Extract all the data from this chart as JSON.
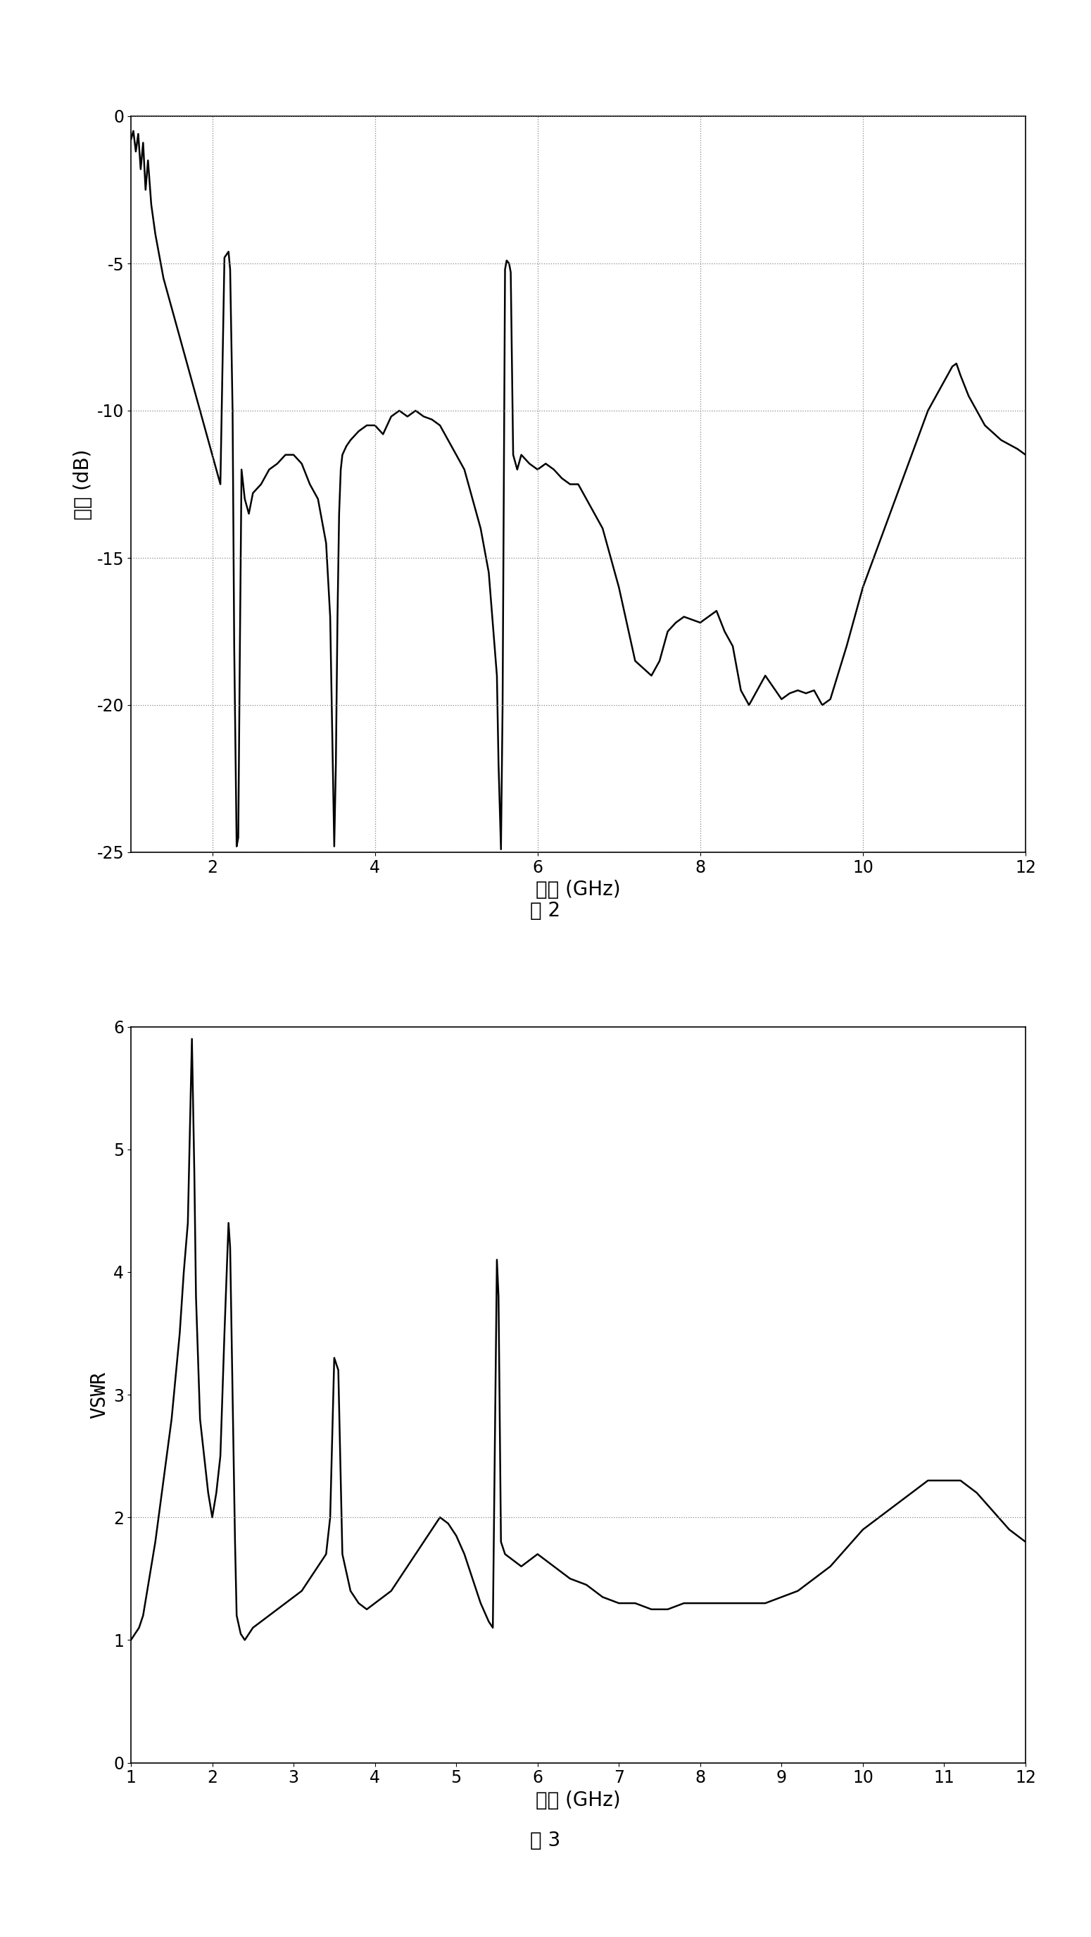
{
  "fig2_title": "图 2",
  "fig3_title": "图 3",
  "fig2_xlabel": "频率 (GHz)",
  "fig2_ylabel": "幅度 (dB)",
  "fig3_xlabel": "频率 (GHz)",
  "fig3_ylabel": "VSWR",
  "fig2_xlim": [
    1,
    12
  ],
  "fig2_ylim": [
    -25,
    0
  ],
  "fig2_xticks": [
    2,
    4,
    6,
    8,
    10,
    12
  ],
  "fig2_yticks": [
    0,
    -5,
    -10,
    -15,
    -20,
    -25
  ],
  "fig3_xlim": [
    1,
    12
  ],
  "fig3_ylim": [
    0,
    6
  ],
  "fig3_xticks": [
    1,
    2,
    3,
    4,
    5,
    6,
    7,
    8,
    9,
    10,
    11,
    12
  ],
  "fig3_yticks": [
    0,
    1,
    2,
    3,
    4,
    5,
    6
  ],
  "line_color": "#000000",
  "bg_color": "#ffffff",
  "grid_color": "#888888",
  "s11_x": [
    1.0,
    1.03,
    1.06,
    1.09,
    1.12,
    1.15,
    1.18,
    1.21,
    1.25,
    1.3,
    1.4,
    1.5,
    1.6,
    1.7,
    1.8,
    1.9,
    2.0,
    2.1,
    2.15,
    2.2,
    2.22,
    2.25,
    2.27,
    2.3,
    2.32,
    2.34,
    2.36,
    2.38,
    2.4,
    2.45,
    2.5,
    2.6,
    2.7,
    2.8,
    2.9,
    3.0,
    3.1,
    3.2,
    3.3,
    3.4,
    3.45,
    3.5,
    3.52,
    3.54,
    3.56,
    3.58,
    3.6,
    3.65,
    3.7,
    3.8,
    3.9,
    4.0,
    4.1,
    4.2,
    4.3,
    4.4,
    4.5,
    4.6,
    4.7,
    4.8,
    4.9,
    5.0,
    5.1,
    5.2,
    5.3,
    5.4,
    5.5,
    5.52,
    5.55,
    5.57,
    5.6,
    5.62,
    5.65,
    5.67,
    5.7,
    5.75,
    5.8,
    5.9,
    6.0,
    6.1,
    6.2,
    6.3,
    6.4,
    6.5,
    6.6,
    6.7,
    6.8,
    7.0,
    7.2,
    7.4,
    7.5,
    7.6,
    7.7,
    7.8,
    8.0,
    8.2,
    8.3,
    8.4,
    8.5,
    8.6,
    8.7,
    8.8,
    9.0,
    9.1,
    9.2,
    9.3,
    9.4,
    9.5,
    9.6,
    9.8,
    10.0,
    10.2,
    10.4,
    10.6,
    10.8,
    11.0,
    11.1,
    11.15,
    11.2,
    11.3,
    11.5,
    11.7,
    11.9,
    12.0
  ],
  "s11_y": [
    -0.8,
    -0.5,
    -1.2,
    -0.6,
    -1.8,
    -0.9,
    -2.5,
    -1.5,
    -3.0,
    -4.0,
    -5.5,
    -6.5,
    -7.5,
    -8.5,
    -9.5,
    -10.5,
    -11.5,
    -12.5,
    -4.8,
    -4.6,
    -5.2,
    -10.0,
    -18.0,
    -24.8,
    -24.5,
    -18.0,
    -12.0,
    -12.5,
    -13.0,
    -13.5,
    -12.8,
    -12.5,
    -12.0,
    -11.8,
    -11.5,
    -11.5,
    -11.8,
    -12.5,
    -13.0,
    -14.5,
    -17.0,
    -24.8,
    -22.0,
    -17.0,
    -13.5,
    -12.0,
    -11.5,
    -11.2,
    -11.0,
    -10.7,
    -10.5,
    -10.5,
    -10.8,
    -10.2,
    -10.0,
    -10.2,
    -10.0,
    -10.2,
    -10.3,
    -10.5,
    -11.0,
    -11.5,
    -12.0,
    -13.0,
    -14.0,
    -15.5,
    -19.0,
    -22.0,
    -24.9,
    -20.0,
    -5.2,
    -4.9,
    -5.0,
    -5.3,
    -11.5,
    -12.0,
    -11.5,
    -11.8,
    -12.0,
    -11.8,
    -12.0,
    -12.3,
    -12.5,
    -12.5,
    -13.0,
    -13.5,
    -14.0,
    -16.0,
    -18.5,
    -19.0,
    -18.5,
    -17.5,
    -17.2,
    -17.0,
    -17.2,
    -16.8,
    -17.5,
    -18.0,
    -19.5,
    -20.0,
    -19.5,
    -19.0,
    -19.8,
    -19.6,
    -19.5,
    -19.6,
    -19.5,
    -20.0,
    -19.8,
    -18.0,
    -16.0,
    -14.5,
    -13.0,
    -11.5,
    -10.0,
    -9.0,
    -8.5,
    -8.4,
    -8.8,
    -9.5,
    -10.5,
    -11.0,
    -11.3,
    -11.5
  ],
  "vswr_x": [
    1.0,
    1.05,
    1.1,
    1.15,
    1.2,
    1.3,
    1.4,
    1.5,
    1.6,
    1.65,
    1.7,
    1.72,
    1.75,
    1.78,
    1.8,
    1.85,
    1.9,
    1.95,
    2.0,
    2.05,
    2.1,
    2.15,
    2.2,
    2.22,
    2.25,
    2.28,
    2.3,
    2.35,
    2.4,
    2.45,
    2.5,
    2.6,
    2.7,
    2.8,
    2.9,
    3.0,
    3.1,
    3.2,
    3.3,
    3.4,
    3.45,
    3.5,
    3.55,
    3.6,
    3.7,
    3.8,
    3.9,
    4.0,
    4.1,
    4.2,
    4.3,
    4.4,
    4.5,
    4.6,
    4.7,
    4.8,
    4.9,
    5.0,
    5.1,
    5.2,
    5.3,
    5.4,
    5.45,
    5.5,
    5.52,
    5.55,
    5.6,
    5.7,
    5.8,
    5.9,
    6.0,
    6.2,
    6.4,
    6.6,
    6.8,
    7.0,
    7.2,
    7.4,
    7.6,
    7.8,
    8.0,
    8.2,
    8.4,
    8.6,
    8.8,
    9.0,
    9.2,
    9.4,
    9.6,
    9.8,
    10.0,
    10.2,
    10.4,
    10.6,
    10.8,
    11.0,
    11.1,
    11.2,
    11.4,
    11.6,
    11.8,
    12.0
  ],
  "vswr_y": [
    1.0,
    1.05,
    1.1,
    1.2,
    1.4,
    1.8,
    2.3,
    2.8,
    3.5,
    4.0,
    4.4,
    5.0,
    5.9,
    4.8,
    3.8,
    2.8,
    2.5,
    2.2,
    2.0,
    2.2,
    2.5,
    3.5,
    4.4,
    4.2,
    3.0,
    1.8,
    1.2,
    1.05,
    1.0,
    1.05,
    1.1,
    1.15,
    1.2,
    1.25,
    1.3,
    1.35,
    1.4,
    1.5,
    1.6,
    1.7,
    2.0,
    3.3,
    3.2,
    1.7,
    1.4,
    1.3,
    1.25,
    1.3,
    1.35,
    1.4,
    1.5,
    1.6,
    1.7,
    1.8,
    1.9,
    2.0,
    1.95,
    1.85,
    1.7,
    1.5,
    1.3,
    1.15,
    1.1,
    4.1,
    3.8,
    1.8,
    1.7,
    1.65,
    1.6,
    1.65,
    1.7,
    1.6,
    1.5,
    1.45,
    1.35,
    1.3,
    1.3,
    1.25,
    1.25,
    1.3,
    1.3,
    1.3,
    1.3,
    1.3,
    1.3,
    1.35,
    1.4,
    1.5,
    1.6,
    1.75,
    1.9,
    2.0,
    2.1,
    2.2,
    2.3,
    2.3,
    2.3,
    2.3,
    2.2,
    2.05,
    1.9,
    1.8
  ]
}
